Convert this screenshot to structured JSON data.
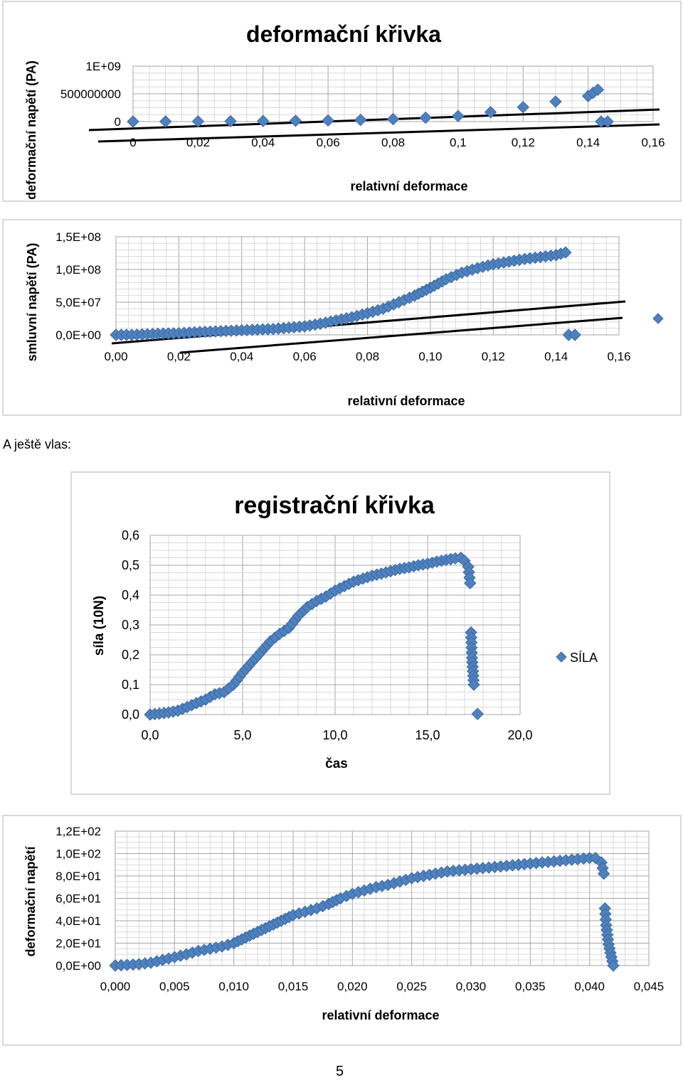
{
  "caption": "A ještě vlas:",
  "page_number": "5",
  "chart_data": [
    {
      "id": "c1",
      "type": "scatter",
      "title": "deformační křivka",
      "xlabel": "relativní deformace",
      "ylabel": "deformační napětí (PA)",
      "xlim": [
        0,
        0.16
      ],
      "ylim": [
        0,
        1000000000
      ],
      "xticks": [
        "0",
        "0,02",
        "0,04",
        "0,06",
        "0,08",
        "0,1",
        "0,12",
        "0,14",
        "0,16"
      ],
      "yticks": [
        "0",
        "500000000",
        "1E+09"
      ],
      "grid": true,
      "series": [
        {
          "x": [
            0,
            0.01,
            0.02,
            0.03,
            0.04,
            0.05,
            0.06,
            0.07,
            0.08,
            0.09,
            0.1,
            0.11,
            0.12,
            0.13,
            0.14,
            0.143,
            0.144,
            0.146
          ],
          "y": [
            0,
            2000000,
            4000000,
            7000000,
            10000000,
            14000000,
            20000000,
            30000000,
            45000000,
            70000000,
            100000000,
            170000000,
            260000000,
            360000000,
            460000000,
            575000000,
            0,
            0
          ]
        }
      ]
    },
    {
      "id": "c2",
      "type": "scatter",
      "xlabel": "relativní deformace",
      "ylabel": "smluvní napětí (PA)",
      "xlim": [
        0,
        0.16
      ],
      "ylim": [
        0,
        150000000
      ],
      "xticks": [
        "0,00",
        "0,02",
        "0,04",
        "0,06",
        "0,08",
        "0,10",
        "0,12",
        "0,14",
        "0,16"
      ],
      "yticks": [
        "0,0E+00",
        "5,0E+07",
        "1,0E+08",
        "1,5E+08"
      ],
      "grid": true,
      "series": [
        {
          "x": [
            0,
            0.005,
            0.01,
            0.015,
            0.02,
            0.025,
            0.03,
            0.035,
            0.04,
            0.045,
            0.05,
            0.055,
            0.06,
            0.065,
            0.07,
            0.075,
            0.08,
            0.085,
            0.09,
            0.095,
            0.1,
            0.105,
            0.11,
            0.115,
            0.12,
            0.125,
            0.13,
            0.135,
            0.14,
            0.143,
            0.144,
            0.146
          ],
          "y": [
            0,
            0,
            1000000,
            2000000,
            2500000,
            4000000,
            5000000,
            6000000,
            7000000,
            8000000,
            9000000,
            11000000,
            13000000,
            17000000,
            22000000,
            27000000,
            33000000,
            40000000,
            50000000,
            60000000,
            72000000,
            85000000,
            95000000,
            102000000,
            108000000,
            112000000,
            116000000,
            119000000,
            122000000,
            126000000,
            0,
            0
          ]
        }
      ]
    },
    {
      "id": "c3",
      "type": "scatter",
      "title": "registrační křivka",
      "xlabel": "čas",
      "ylabel": "síla (10N)",
      "xlim": [
        0,
        20
      ],
      "ylim": [
        0,
        0.6
      ],
      "xticks": [
        "0,0",
        "5,0",
        "10,0",
        "15,0",
        "20,0"
      ],
      "yticks": [
        "0,0",
        "0,1",
        "0,2",
        "0,3",
        "0,4",
        "0,5",
        "0,6"
      ],
      "grid": true,
      "legend": "right",
      "series": [
        {
          "name": "SÍLA",
          "x": [
            0,
            0.5,
            1,
            1.5,
            2,
            2.5,
            3,
            3.5,
            4,
            4.5,
            5,
            5.5,
            6,
            6.5,
            7,
            7.5,
            8,
            8.5,
            9,
            9.5,
            10,
            10.5,
            11,
            11.5,
            12,
            12.5,
            13,
            13.5,
            14,
            14.5,
            15,
            15.5,
            16,
            16.5,
            16.8,
            17,
            17.2,
            17.3,
            17.35,
            17.4,
            17.5,
            17.7
          ],
          "y": [
            0,
            0.003,
            0.007,
            0.013,
            0.025,
            0.038,
            0.05,
            0.068,
            0.075,
            0.1,
            0.14,
            0.175,
            0.21,
            0.245,
            0.27,
            0.29,
            0.33,
            0.36,
            0.38,
            0.395,
            0.415,
            0.43,
            0.445,
            0.455,
            0.465,
            0.472,
            0.48,
            0.488,
            0.493,
            0.5,
            0.505,
            0.512,
            0.518,
            0.523,
            0.525,
            0.515,
            0.495,
            0.44,
            0.275,
            0.19,
            0.1,
            0.002
          ]
        }
      ]
    },
    {
      "id": "c4",
      "type": "scatter",
      "xlabel": "relativní deformace",
      "ylabel": "deformační napětí",
      "xlim": [
        0,
        0.045
      ],
      "ylim": [
        0,
        120
      ],
      "xticks": [
        "0,000",
        "0,005",
        "0,010",
        "0,015",
        "0,020",
        "0,025",
        "0,030",
        "0,035",
        "0,040",
        "0,045"
      ],
      "yticks": [
        "0,0E+00",
        "2,0E+01",
        "4,0E+01",
        "6,0E+01",
        "8,0E+01",
        "1,0E+02",
        "1,2E+02"
      ],
      "grid": true,
      "series": [
        {
          "x": [
            0,
            0.001,
            0.002,
            0.003,
            0.004,
            0.005,
            0.006,
            0.007,
            0.008,
            0.009,
            0.01,
            0.011,
            0.012,
            0.013,
            0.014,
            0.015,
            0.016,
            0.017,
            0.018,
            0.019,
            0.02,
            0.021,
            0.022,
            0.023,
            0.024,
            0.025,
            0.026,
            0.027,
            0.028,
            0.029,
            0.03,
            0.031,
            0.032,
            0.033,
            0.034,
            0.035,
            0.036,
            0.037,
            0.038,
            0.039,
            0.04,
            0.0405,
            0.041,
            0.0412,
            0.0413,
            0.0414,
            0.0416,
            0.042
          ],
          "y": [
            0,
            0.5,
            1.2,
            2.5,
            5,
            7.5,
            10,
            13,
            15,
            17,
            20,
            25,
            30,
            35,
            40,
            45,
            48,
            51,
            55,
            60,
            64,
            67,
            70,
            72,
            75,
            78,
            80,
            82,
            84,
            85,
            86,
            87,
            88,
            89,
            90,
            91,
            92,
            93,
            94,
            95,
            96,
            96,
            92,
            82,
            51,
            36,
            19,
            0
          ]
        }
      ]
    }
  ]
}
